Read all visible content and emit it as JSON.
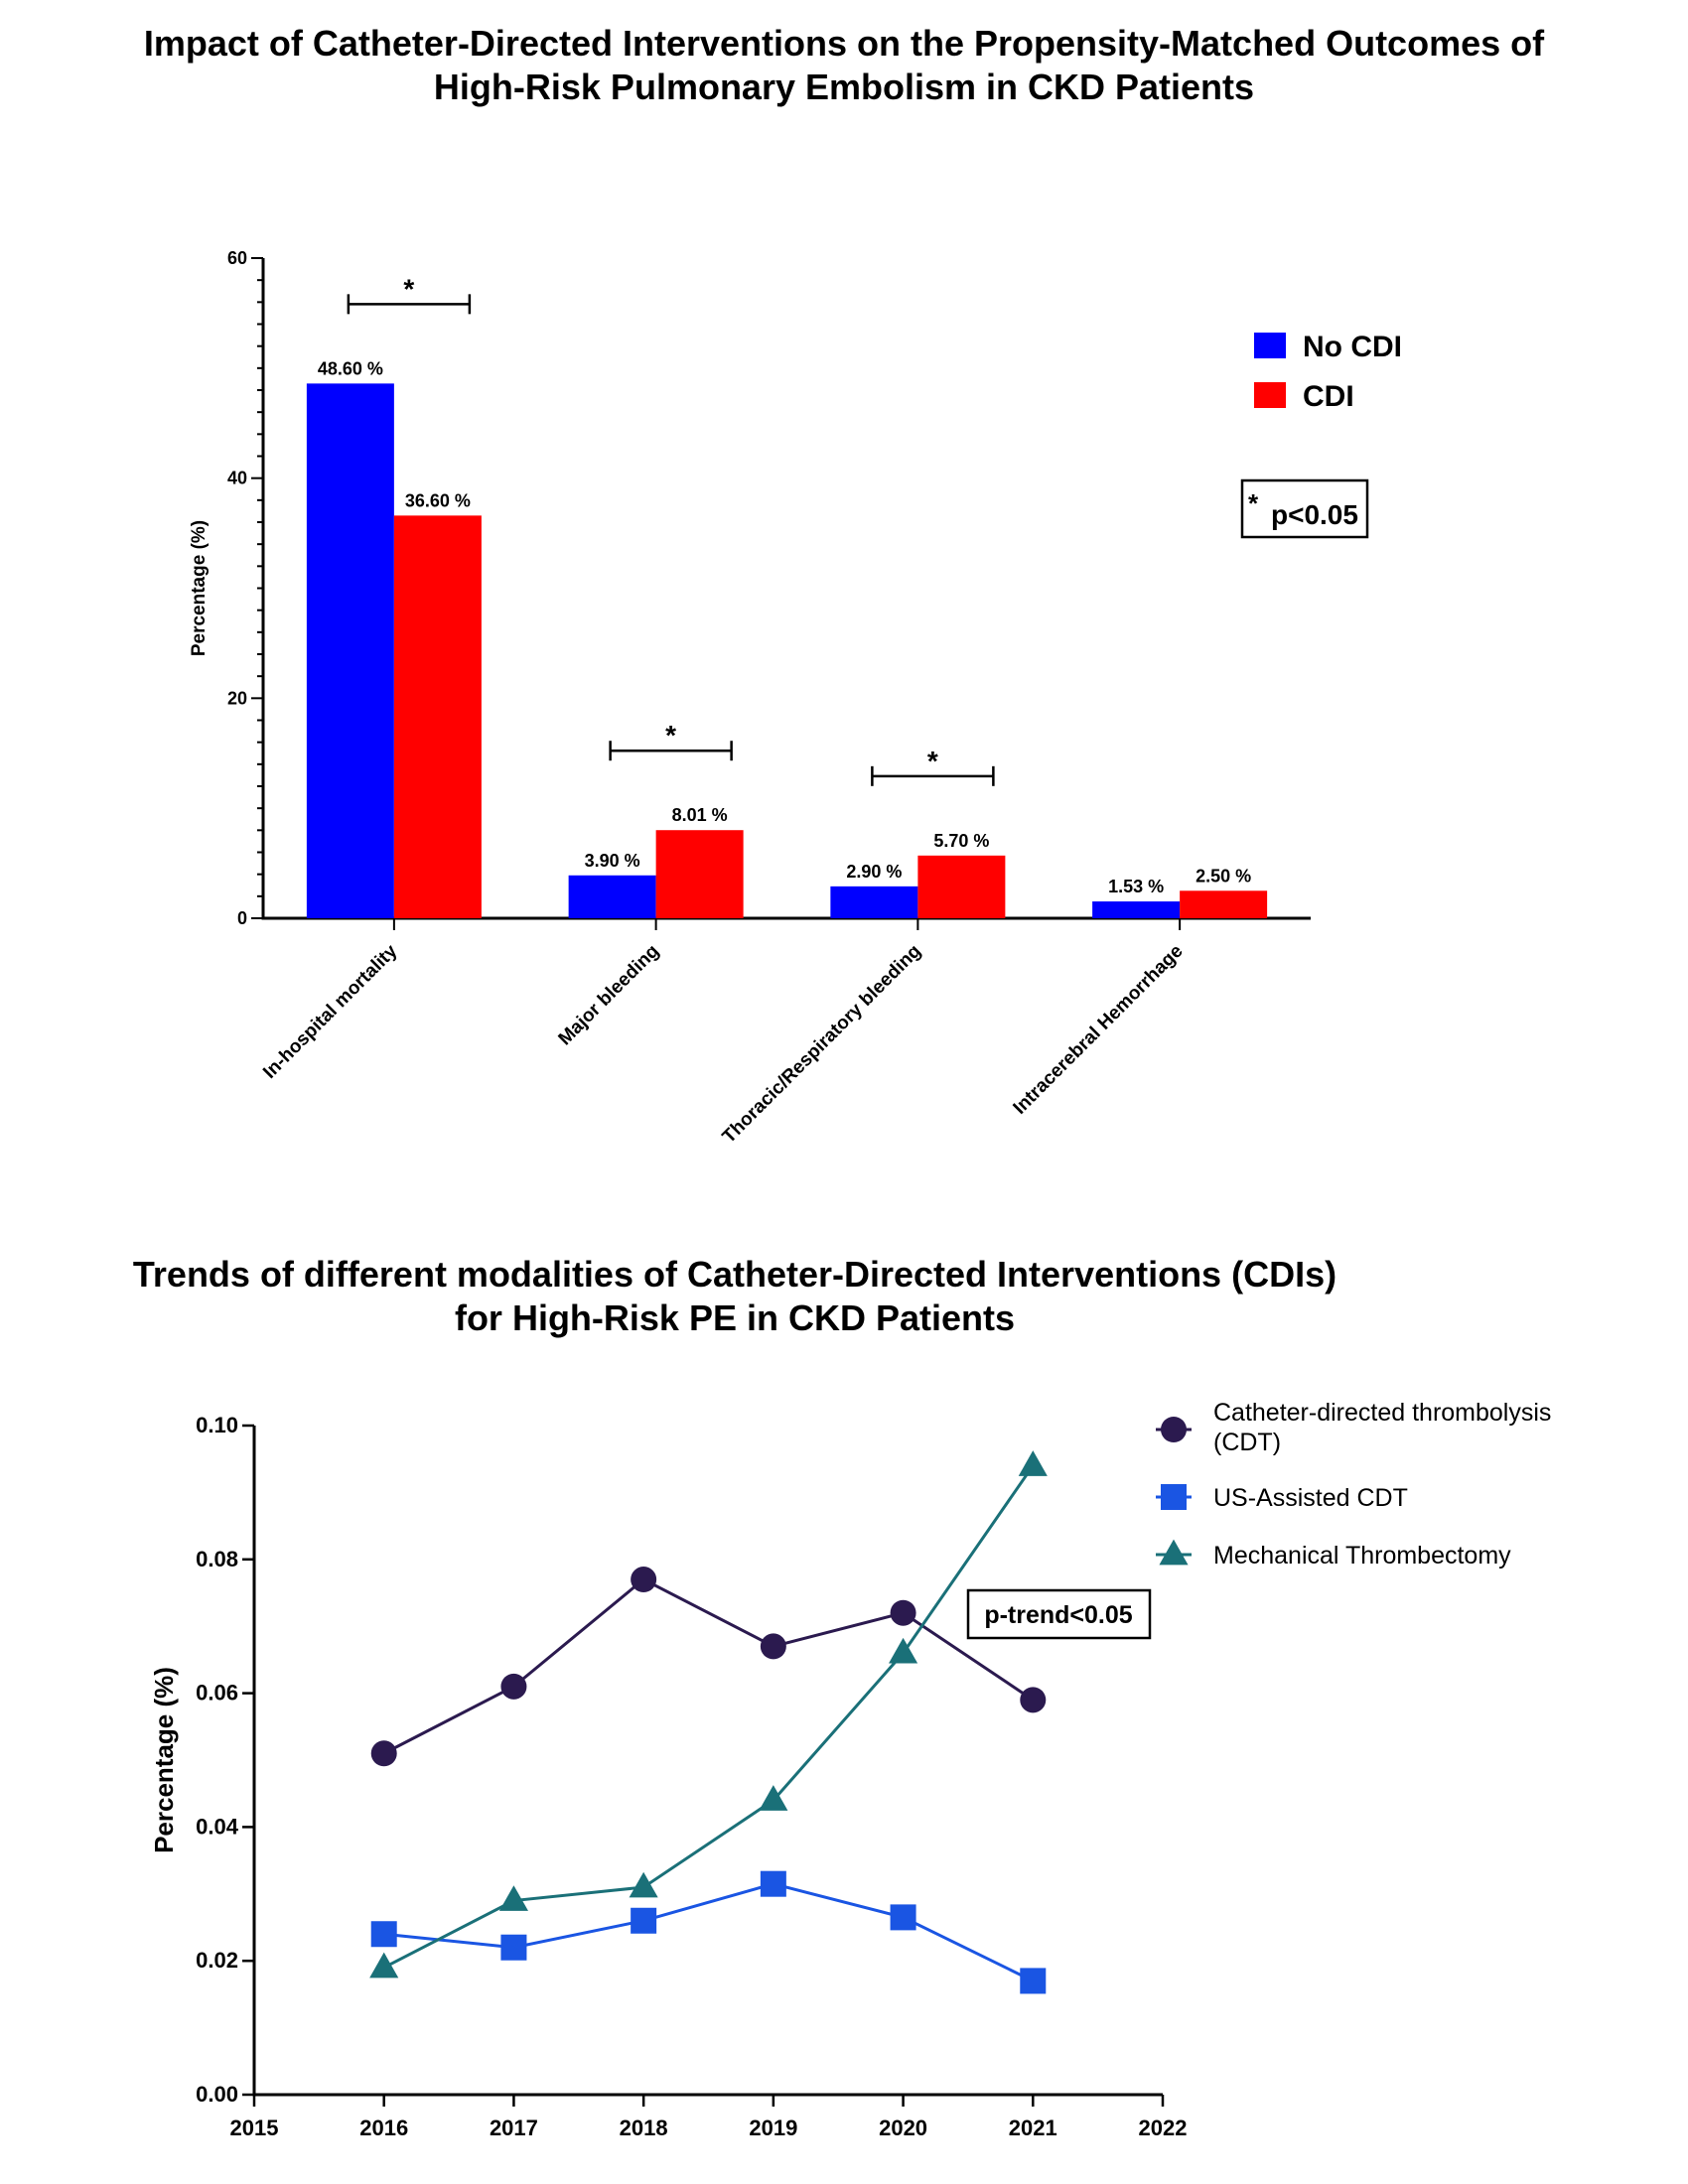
{
  "figure1": {
    "title_line1": "Impact of Catheter-Directed Interventions on the Propensity-Matched Outcomes of",
    "title_line2": "High-Risk Pulmonary Embolism in CKD Patients",
    "significance_note": "p<0.05",
    "significance_star": "*"
  },
  "figure2": {
    "title_line1": "Trends of different modalities of Catheter-Directed Interventions (CDIs)",
    "title_line2": "for High-Risk PE in CKD Patients",
    "annotation": "p-trend<0.05"
  },
  "chart_data": [
    {
      "type": "bar",
      "title": "Impact of Catheter-Directed Interventions on the Propensity-Matched Outcomes of High-Risk Pulmonary Embolism in CKD Patients",
      "ylabel": "Percentage (%)",
      "xlabel": "",
      "ylim": [
        0,
        60
      ],
      "yticks": [
        0,
        20,
        40,
        60
      ],
      "categories": [
        "In-hospital mortality",
        "Major bleeding",
        "Thoracic/Respiratory bleeding",
        "Intracerebral Hemorrhage"
      ],
      "series": [
        {
          "name": "No CDI",
          "color": "#0000ff",
          "values": [
            48.6,
            3.9,
            2.9,
            1.53
          ],
          "labels": [
            "48.60 %",
            "3.90 %",
            "2.90 %",
            "1.53 %"
          ]
        },
        {
          "name": "CDI",
          "color": "#ff0000",
          "values": [
            36.6,
            8.01,
            5.7,
            2.5
          ],
          "labels": [
            "36.60 %",
            "8.01 %",
            "5.70 %",
            "2.50 %"
          ]
        }
      ],
      "significant": [
        true,
        true,
        true,
        false
      ],
      "legend": "top-right",
      "grid": false
    },
    {
      "type": "line",
      "title": "Trends of different modalities of Catheter-Directed Interventions (CDIs) for High-Risk PE in CKD Patients",
      "ylabel": "Percentage (%)",
      "xlabel": "",
      "xlim": [
        2015,
        2022
      ],
      "xticks": [
        2015,
        2016,
        2017,
        2018,
        2019,
        2020,
        2021,
        2022
      ],
      "ylim": [
        0,
        0.1
      ],
      "yticks": [
        "0.00",
        "0.02",
        "0.04",
        "0.06",
        "0.08",
        "0.10"
      ],
      "x": [
        2016,
        2017,
        2018,
        2019,
        2020,
        2021
      ],
      "series": [
        {
          "name": "Catheter-directed thrombolysis (CDT)",
          "legend_lines": [
            "Catheter-directed thrombolysis",
            "(CDT)"
          ],
          "marker": "circle",
          "color": "#2b1a4f",
          "values": [
            0.051,
            0.061,
            0.077,
            0.067,
            0.072,
            0.059
          ]
        },
        {
          "name": "US-Assisted CDT",
          "legend_lines": [
            "US-Assisted CDT"
          ],
          "marker": "square",
          "color": "#1a55e3",
          "values": [
            0.024,
            0.022,
            0.026,
            0.0315,
            0.0265,
            0.017
          ]
        },
        {
          "name": "Mechanical Thrombectomy",
          "legend_lines": [
            "Mechanical Thrombectomy"
          ],
          "marker": "triangle",
          "color": "#1a7078",
          "values": [
            0.019,
            0.029,
            0.031,
            0.044,
            0.066,
            0.094
          ]
        }
      ],
      "legend": "top-right",
      "grid": false
    }
  ]
}
